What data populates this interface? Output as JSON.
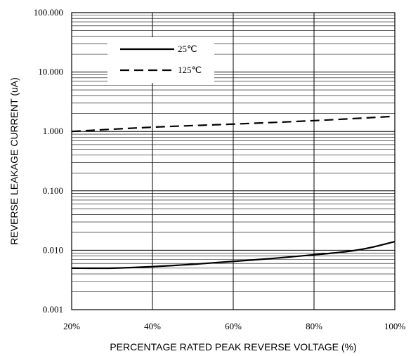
{
  "chart_data": {
    "type": "line",
    "xlabel": "PERCENTAGE RATED PEAK REVERSE VOLTAGE (%)",
    "ylabel": "REVERSE LEAKAGE CURRENT (uA)",
    "xlim": [
      20,
      100
    ],
    "ylim": [
      0.001,
      100
    ],
    "y_scale": "log",
    "grid": true,
    "legend_position": "top-left",
    "x_ticks": [
      20,
      40,
      60,
      80,
      100
    ],
    "x_tick_labels": [
      "20%",
      "40%",
      "60%",
      "80%",
      "100%"
    ],
    "y_ticks": [
      0.001,
      0.01,
      0.1,
      1,
      10,
      100
    ],
    "y_tick_labels": [
      "0.001",
      "0.010",
      "0.100",
      "1.000",
      "10.000",
      "100.000"
    ],
    "series": [
      {
        "name": "25℃",
        "style": "solid",
        "color": "#000000",
        "x": [
          20,
          30,
          40,
          50,
          60,
          70,
          80,
          85,
          90,
          95,
          100
        ],
        "y": [
          0.005,
          0.005,
          0.0053,
          0.0058,
          0.0065,
          0.0073,
          0.0084,
          0.009,
          0.0099,
          0.0115,
          0.014
        ]
      },
      {
        "name": "125℃",
        "style": "dashed",
        "color": "#000000",
        "x": [
          20,
          40,
          60,
          80,
          100
        ],
        "y": [
          1.0,
          1.18,
          1.33,
          1.52,
          1.8
        ]
      }
    ]
  }
}
